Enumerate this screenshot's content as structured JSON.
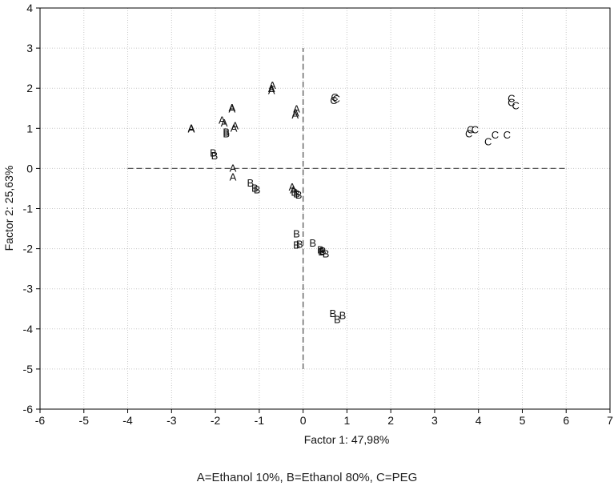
{
  "chart_data": {
    "type": "scatter",
    "xlabel": "Factor 1: 47,98%",
    "ylabel": "Factor 2: 25,63%",
    "xlim": [
      -6,
      7
    ],
    "ylim": [
      -6,
      4
    ],
    "x_ticks": [
      -6,
      -5,
      -4,
      -3,
      -2,
      -1,
      0,
      1,
      2,
      3,
      4,
      5,
      6,
      7
    ],
    "y_ticks": [
      -6,
      -5,
      -4,
      -3,
      -2,
      -1,
      0,
      1,
      2,
      3,
      4
    ],
    "grid": true,
    "reference_lines": {
      "horizontal": {
        "y": 0,
        "x_from": -4,
        "x_to": 6
      },
      "vertical": {
        "x": 0,
        "y_from": -5,
        "y_to": 3
      }
    },
    "series": [
      {
        "marker_label": "A",
        "points": [
          [
            -2.55,
            1.02
          ],
          [
            -2.55,
            1.0
          ],
          [
            -1.85,
            1.22
          ],
          [
            -1.8,
            1.15
          ],
          [
            -1.62,
            1.52
          ],
          [
            -1.62,
            1.5
          ],
          [
            -1.55,
            1.08
          ],
          [
            -1.58,
            1.02
          ],
          [
            -0.7,
            2.08
          ],
          [
            -0.72,
            2.0
          ],
          [
            -0.72,
            1.95
          ],
          [
            -0.15,
            1.5
          ],
          [
            -0.17,
            1.4
          ],
          [
            -0.18,
            1.35
          ],
          [
            -1.6,
            0.02
          ],
          [
            -1.6,
            -0.2
          ],
          [
            -0.25,
            -0.45
          ],
          [
            -0.22,
            -0.52
          ]
        ]
      },
      {
        "marker_label": "B",
        "points": [
          [
            -1.75,
            0.92
          ],
          [
            -1.75,
            0.88
          ],
          [
            -2.05,
            0.4
          ],
          [
            -2.02,
            0.33
          ],
          [
            -1.2,
            -0.35
          ],
          [
            -1.1,
            -0.48
          ],
          [
            -1.05,
            -0.52
          ],
          [
            -0.2,
            -0.58
          ],
          [
            -0.15,
            -0.62
          ],
          [
            -0.1,
            -0.65
          ],
          [
            -0.15,
            -1.62
          ],
          [
            -0.15,
            -1.9
          ],
          [
            -0.08,
            -1.88
          ],
          [
            0.22,
            -1.85
          ],
          [
            0.4,
            -2.02
          ],
          [
            0.45,
            -2.05
          ],
          [
            0.42,
            -2.07
          ],
          [
            0.52,
            -2.12
          ],
          [
            0.68,
            -3.6
          ],
          [
            0.78,
            -3.75
          ],
          [
            0.9,
            -3.65
          ]
        ]
      },
      {
        "marker_label": "C",
        "points": [
          [
            0.72,
            1.78
          ],
          [
            0.76,
            1.74
          ],
          [
            0.7,
            1.7
          ],
          [
            4.75,
            1.75
          ],
          [
            4.75,
            1.65
          ],
          [
            4.85,
            1.57
          ],
          [
            3.82,
            0.98
          ],
          [
            3.92,
            0.98
          ],
          [
            3.78,
            0.88
          ],
          [
            4.22,
            0.68
          ],
          [
            4.38,
            0.85
          ],
          [
            4.65,
            0.85
          ]
        ]
      }
    ],
    "legend_text": "A=Ethanol 10%,  B=Ethanol 80%,  C=PEG"
  }
}
